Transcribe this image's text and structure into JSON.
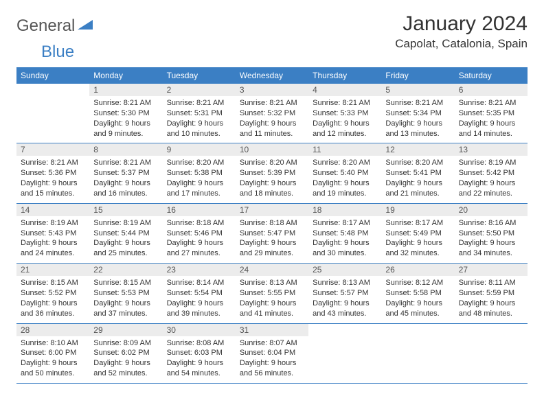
{
  "logo": {
    "text_gray": "General",
    "text_blue": "Blue"
  },
  "header": {
    "title": "January 2024",
    "location": "Capolat, Catalonia, Spain"
  },
  "colors": {
    "header_bg": "#3b7fc4",
    "header_text": "#ffffff",
    "daynum_bg": "#ececec",
    "border": "#3b7fc4",
    "text": "#333333",
    "logo_gray": "#555555",
    "logo_blue": "#3b7fc4"
  },
  "days_of_week": [
    "Sunday",
    "Monday",
    "Tuesday",
    "Wednesday",
    "Thursday",
    "Friday",
    "Saturday"
  ],
  "weeks": [
    [
      null,
      {
        "n": "1",
        "sunrise": "8:21 AM",
        "sunset": "5:30 PM",
        "daylight": "9 hours and 9 minutes."
      },
      {
        "n": "2",
        "sunrise": "8:21 AM",
        "sunset": "5:31 PM",
        "daylight": "9 hours and 10 minutes."
      },
      {
        "n": "3",
        "sunrise": "8:21 AM",
        "sunset": "5:32 PM",
        "daylight": "9 hours and 11 minutes."
      },
      {
        "n": "4",
        "sunrise": "8:21 AM",
        "sunset": "5:33 PM",
        "daylight": "9 hours and 12 minutes."
      },
      {
        "n": "5",
        "sunrise": "8:21 AM",
        "sunset": "5:34 PM",
        "daylight": "9 hours and 13 minutes."
      },
      {
        "n": "6",
        "sunrise": "8:21 AM",
        "sunset": "5:35 PM",
        "daylight": "9 hours and 14 minutes."
      }
    ],
    [
      {
        "n": "7",
        "sunrise": "8:21 AM",
        "sunset": "5:36 PM",
        "daylight": "9 hours and 15 minutes."
      },
      {
        "n": "8",
        "sunrise": "8:21 AM",
        "sunset": "5:37 PM",
        "daylight": "9 hours and 16 minutes."
      },
      {
        "n": "9",
        "sunrise": "8:20 AM",
        "sunset": "5:38 PM",
        "daylight": "9 hours and 17 minutes."
      },
      {
        "n": "10",
        "sunrise": "8:20 AM",
        "sunset": "5:39 PM",
        "daylight": "9 hours and 18 minutes."
      },
      {
        "n": "11",
        "sunrise": "8:20 AM",
        "sunset": "5:40 PM",
        "daylight": "9 hours and 19 minutes."
      },
      {
        "n": "12",
        "sunrise": "8:20 AM",
        "sunset": "5:41 PM",
        "daylight": "9 hours and 21 minutes."
      },
      {
        "n": "13",
        "sunrise": "8:19 AM",
        "sunset": "5:42 PM",
        "daylight": "9 hours and 22 minutes."
      }
    ],
    [
      {
        "n": "14",
        "sunrise": "8:19 AM",
        "sunset": "5:43 PM",
        "daylight": "9 hours and 24 minutes."
      },
      {
        "n": "15",
        "sunrise": "8:19 AM",
        "sunset": "5:44 PM",
        "daylight": "9 hours and 25 minutes."
      },
      {
        "n": "16",
        "sunrise": "8:18 AM",
        "sunset": "5:46 PM",
        "daylight": "9 hours and 27 minutes."
      },
      {
        "n": "17",
        "sunrise": "8:18 AM",
        "sunset": "5:47 PM",
        "daylight": "9 hours and 29 minutes."
      },
      {
        "n": "18",
        "sunrise": "8:17 AM",
        "sunset": "5:48 PM",
        "daylight": "9 hours and 30 minutes."
      },
      {
        "n": "19",
        "sunrise": "8:17 AM",
        "sunset": "5:49 PM",
        "daylight": "9 hours and 32 minutes."
      },
      {
        "n": "20",
        "sunrise": "8:16 AM",
        "sunset": "5:50 PM",
        "daylight": "9 hours and 34 minutes."
      }
    ],
    [
      {
        "n": "21",
        "sunrise": "8:15 AM",
        "sunset": "5:52 PM",
        "daylight": "9 hours and 36 minutes."
      },
      {
        "n": "22",
        "sunrise": "8:15 AM",
        "sunset": "5:53 PM",
        "daylight": "9 hours and 37 minutes."
      },
      {
        "n": "23",
        "sunrise": "8:14 AM",
        "sunset": "5:54 PM",
        "daylight": "9 hours and 39 minutes."
      },
      {
        "n": "24",
        "sunrise": "8:13 AM",
        "sunset": "5:55 PM",
        "daylight": "9 hours and 41 minutes."
      },
      {
        "n": "25",
        "sunrise": "8:13 AM",
        "sunset": "5:57 PM",
        "daylight": "9 hours and 43 minutes."
      },
      {
        "n": "26",
        "sunrise": "8:12 AM",
        "sunset": "5:58 PM",
        "daylight": "9 hours and 45 minutes."
      },
      {
        "n": "27",
        "sunrise": "8:11 AM",
        "sunset": "5:59 PM",
        "daylight": "9 hours and 48 minutes."
      }
    ],
    [
      {
        "n": "28",
        "sunrise": "8:10 AM",
        "sunset": "6:00 PM",
        "daylight": "9 hours and 50 minutes."
      },
      {
        "n": "29",
        "sunrise": "8:09 AM",
        "sunset": "6:02 PM",
        "daylight": "9 hours and 52 minutes."
      },
      {
        "n": "30",
        "sunrise": "8:08 AM",
        "sunset": "6:03 PM",
        "daylight": "9 hours and 54 minutes."
      },
      {
        "n": "31",
        "sunrise": "8:07 AM",
        "sunset": "6:04 PM",
        "daylight": "9 hours and 56 minutes."
      },
      null,
      null,
      null
    ]
  ],
  "labels": {
    "sunrise": "Sunrise:",
    "sunset": "Sunset:",
    "daylight": "Daylight:"
  }
}
